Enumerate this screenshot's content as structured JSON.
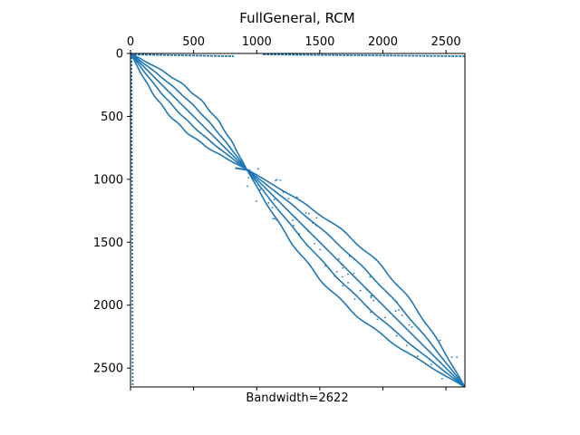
{
  "chart_data": {
    "type": "scatter",
    "title": "FullGeneral, RCM",
    "xlabel": "Bandwidth=2622",
    "ylabel": "",
    "xlim": [
      0,
      2650
    ],
    "ylim": [
      2650,
      0
    ],
    "x_ticks": [
      0,
      500,
      1000,
      1500,
      2000,
      2500
    ],
    "y_ticks": [
      0,
      500,
      1000,
      1500,
      2000,
      2500
    ],
    "x_tick_position": "top",
    "y_axis_inverted": true,
    "grid": false,
    "marker_color": "#1f77b4",
    "matrix_size": 2650,
    "bandwidth": 2622,
    "structure": {
      "diagonal": [
        [
          0,
          0
        ],
        [
          2650,
          2650
        ]
      ],
      "first_row_dense_ranges": [
        [
          0,
          820
        ],
        [
          1050,
          2650
        ]
      ],
      "first_column_dense_range": [
        0,
        2650
      ],
      "crossing_point": [
        920,
        920
      ],
      "bands_before_crossing": [
        {
          "start": [
            0,
            0
          ],
          "end": [
            920,
            920
          ],
          "max_offset": 130
        },
        {
          "start": [
            0,
            0
          ],
          "end": [
            920,
            920
          ],
          "max_offset": 60
        },
        {
          "start": [
            0,
            0
          ],
          "end": [
            920,
            920
          ],
          "max_offset": -60
        },
        {
          "start": [
            0,
            0
          ],
          "end": [
            920,
            920
          ],
          "max_offset": -130
        }
      ],
      "bands_after_crossing": [
        {
          "start": [
            920,
            920
          ],
          "end": [
            2650,
            2650
          ],
          "max_offset": 210
        },
        {
          "start": [
            920,
            920
          ],
          "end": [
            2650,
            2650
          ],
          "max_offset": 100
        },
        {
          "start": [
            920,
            920
          ],
          "end": [
            2650,
            2650
          ],
          "max_offset": -100
        },
        {
          "start": [
            920,
            920
          ],
          "end": [
            2650,
            2650
          ],
          "max_offset": -210
        }
      ]
    }
  }
}
